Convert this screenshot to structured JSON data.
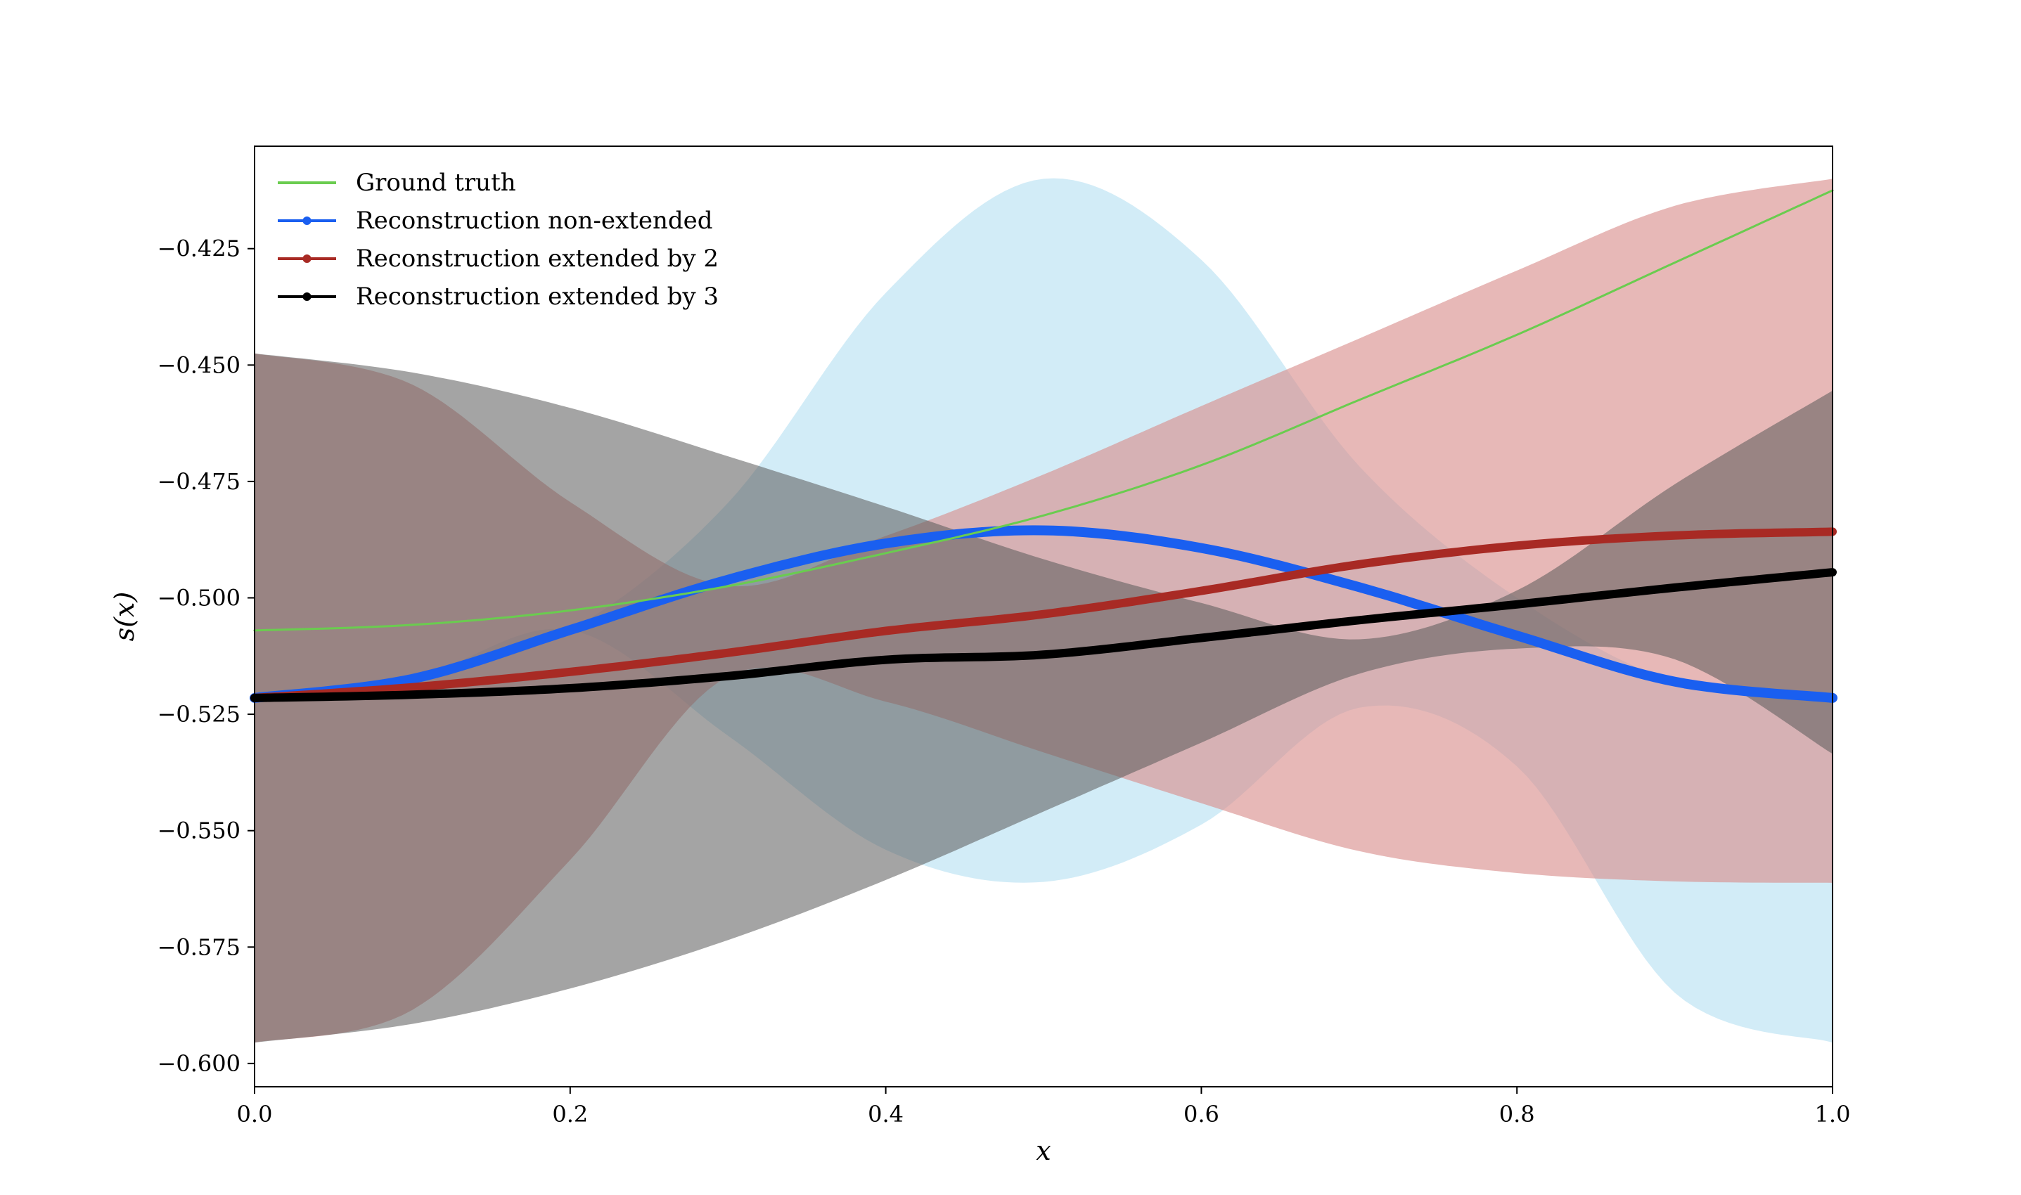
{
  "chart_data": {
    "type": "line",
    "xlabel": "x",
    "ylabel": "s(x)",
    "xlim": [
      0.0,
      1.0
    ],
    "ylim": [
      -0.605,
      -0.403
    ],
    "x_ticks": [
      0.0,
      0.2,
      0.4,
      0.6,
      0.8,
      1.0
    ],
    "x_tick_labels": [
      "0.0",
      "0.2",
      "0.4",
      "0.6",
      "0.8",
      "1.0"
    ],
    "y_ticks": [
      -0.425,
      -0.45,
      -0.475,
      -0.5,
      -0.525,
      -0.55,
      -0.575,
      -0.6
    ],
    "y_tick_labels": [
      "−0.425",
      "−0.450",
      "−0.475",
      "−0.500",
      "−0.525",
      "−0.550",
      "−0.575",
      "−0.600"
    ],
    "grid": false,
    "legend_position": "top-left",
    "series": [
      {
        "name": "Ground truth",
        "color": "#6acc4f",
        "kind": "line",
        "x": [
          0.0,
          0.1,
          0.2,
          0.3,
          0.4,
          0.5,
          0.6,
          0.7,
          0.8,
          0.9,
          1.0
        ],
        "y": [
          -0.507,
          -0.5058,
          -0.5027,
          -0.4975,
          -0.4904,
          -0.4823,
          -0.4715,
          -0.4575,
          -0.4435,
          -0.428,
          -0.4125
        ]
      },
      {
        "name": "Reconstruction non-extended",
        "color": "#1a5ff0",
        "kind": "line-with-band",
        "band_color": "#a6daf0",
        "x": [
          0.0,
          0.1,
          0.2,
          0.3,
          0.4,
          0.5,
          0.6,
          0.7,
          0.8,
          0.9,
          1.0
        ],
        "y": [
          -0.5215,
          -0.5174,
          -0.5069,
          -0.4961,
          -0.4883,
          -0.4855,
          -0.4893,
          -0.4977,
          -0.5081,
          -0.518,
          -0.5215
        ],
        "band_lower": [
          -0.5215,
          -0.5174,
          -0.5069,
          -0.5296,
          -0.5541,
          -0.561,
          -0.5487,
          -0.5236,
          -0.5362,
          -0.5848,
          -0.5955
        ],
        "band_upper": [
          -0.5215,
          -0.5174,
          -0.5069,
          -0.4796,
          -0.4345,
          -0.41,
          -0.4274,
          -0.4717,
          -0.5,
          -0.518,
          -0.5215
        ]
      },
      {
        "name": "Reconstruction extended by 2",
        "color": "#a82a24",
        "kind": "line-with-band",
        "band_color": "#d88c8a",
        "x": [
          0.0,
          0.1,
          0.2,
          0.3,
          0.4,
          0.5,
          0.6,
          0.7,
          0.8,
          0.9,
          1.0
        ],
        "y": [
          -0.5215,
          -0.5192,
          -0.5159,
          -0.5118,
          -0.5071,
          -0.5035,
          -0.4985,
          -0.4928,
          -0.4888,
          -0.4866,
          -0.4858
        ],
        "band_lower": [
          -0.5955,
          -0.5885,
          -0.5563,
          -0.5169,
          -0.5223,
          -0.5332,
          -0.5441,
          -0.5544,
          -0.5591,
          -0.5609,
          -0.5612
        ],
        "band_upper": [
          -0.4475,
          -0.4542,
          -0.4794,
          -0.4974,
          -0.4867,
          -0.4735,
          -0.4588,
          -0.4443,
          -0.4297,
          -0.4158,
          -0.41
        ]
      },
      {
        "name": "Reconstruction extended by 3",
        "color": "#000000",
        "kind": "line-with-band",
        "band_color": "#5a5a5a",
        "x": [
          0.0,
          0.1,
          0.2,
          0.3,
          0.4,
          0.5,
          0.6,
          0.7,
          0.8,
          0.9,
          1.0
        ],
        "y": [
          -0.5215,
          -0.5208,
          -0.5194,
          -0.5168,
          -0.5133,
          -0.5122,
          -0.5086,
          -0.5048,
          -0.5014,
          -0.4978,
          -0.4945
        ],
        "band_lower": [
          -0.5955,
          -0.5915,
          -0.5839,
          -0.5735,
          -0.5606,
          -0.5459,
          -0.5311,
          -0.5163,
          -0.5109,
          -0.5132,
          -0.5335
        ],
        "band_upper": [
          -0.4475,
          -0.4516,
          -0.4592,
          -0.4696,
          -0.4804,
          -0.4917,
          -0.5011,
          -0.5089,
          -0.4984,
          -0.4756,
          -0.4555
        ]
      }
    ]
  }
}
